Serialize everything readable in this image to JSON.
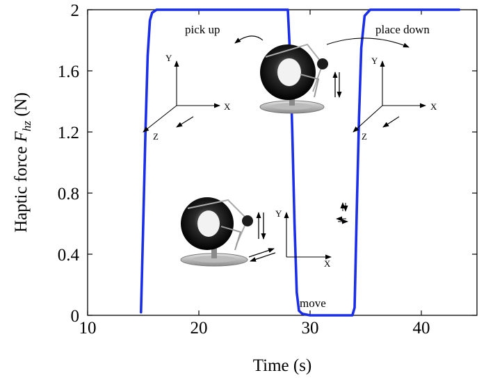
{
  "chart_data": {
    "type": "line",
    "title": "",
    "xlabel": "Time (s)",
    "ylabel_prefix": "Haptic force ",
    "ylabel_symbol": "F",
    "ylabel_subscript": "hz",
    "ylabel_unit": " (N)",
    "xlim": [
      10,
      45
    ],
    "ylim": [
      0,
      2
    ],
    "xticks": [
      10,
      20,
      30,
      40
    ],
    "xtick_labels": [
      "10",
      "20",
      "30",
      "40"
    ],
    "yticks": [
      0,
      0.4,
      0.8,
      1.2,
      1.6,
      2
    ],
    "ytick_labels": [
      "0",
      "0.4",
      "0.8",
      "1.2",
      "1.6",
      "2"
    ],
    "grid": false,
    "series": [
      {
        "color": "#1a2ee6",
        "x": [
          14.8,
          15.0,
          15.2,
          15.4,
          15.6,
          15.8,
          16.2,
          17,
          20,
          25,
          28.0,
          28.2,
          28.4,
          28.6,
          28.8,
          29.0,
          29.3,
          30,
          32,
          33.8,
          34.0,
          34.2,
          34.4,
          34.6,
          34.9,
          35.4,
          38,
          42,
          43.4
        ],
        "y": [
          0.02,
          0.6,
          1.2,
          1.7,
          1.93,
          1.98,
          2.0,
          2.0,
          2.0,
          2.0,
          2.0,
          1.7,
          1.2,
          0.6,
          0.15,
          0.03,
          0.01,
          0.0,
          0.0,
          0.0,
          0.05,
          0.7,
          1.3,
          1.75,
          1.96,
          2.0,
          2.0,
          2.0,
          2.0
        ]
      }
    ],
    "annotations": [
      {
        "text": "pick up",
        "x": 22.0,
        "y": 1.86
      },
      {
        "text": "place down",
        "x": 39.5,
        "y": 1.86
      },
      {
        "text": "move",
        "x": 31.2,
        "y": 0.07
      }
    ],
    "coordinate_frames": [
      {
        "name": "frame-upper-left",
        "x_label": "X",
        "y_label": "Y",
        "z_label": "Z"
      },
      {
        "name": "frame-upper-right",
        "x_label": "X",
        "y_label": "Y",
        "z_label": "Z"
      },
      {
        "name": "frame-lower",
        "x_label": "X",
        "y_label": "Y"
      }
    ]
  }
}
